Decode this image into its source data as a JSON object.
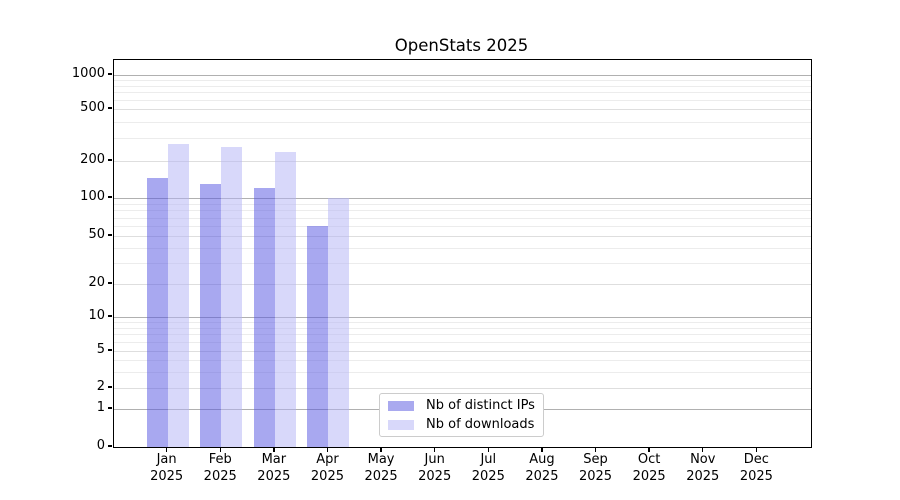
{
  "title": "OpenStats 2025",
  "chart_data": {
    "type": "bar",
    "title": "OpenStats 2025",
    "y_scale": "symlog",
    "ylim": [
      0,
      1320
    ],
    "y_ticks": [
      0,
      1,
      2,
      5,
      10,
      20,
      50,
      100,
      200,
      500,
      1000
    ],
    "grid": "both (horizontal major + minor gridlines)",
    "legend_position": "inside lower-center-left",
    "months": [
      {
        "month": "Jan",
        "year": "2025"
      },
      {
        "month": "Feb",
        "year": "2025"
      },
      {
        "month": "Mar",
        "year": "2025"
      },
      {
        "month": "Apr",
        "year": "2025"
      },
      {
        "month": "May",
        "year": "2025"
      },
      {
        "month": "Jun",
        "year": "2025"
      },
      {
        "month": "Jul",
        "year": "2025"
      },
      {
        "month": "Aug",
        "year": "2025"
      },
      {
        "month": "Sep",
        "year": "2025"
      },
      {
        "month": "Oct",
        "year": "2025"
      },
      {
        "month": "Nov",
        "year": "2025"
      },
      {
        "month": "Dec",
        "year": "2025"
      }
    ],
    "series": [
      {
        "name": "Nb of distinct IPs",
        "base_color": "#5151E1",
        "bar_alpha": 0.5,
        "legend_swatch_color": "#A9A9EF",
        "values": [
          145,
          130,
          120,
          60,
          null,
          null,
          null,
          null,
          null,
          null,
          null,
          null
        ]
      },
      {
        "name": "Nb of downloads",
        "base_color": "#B1B1F5",
        "bar_alpha": 0.5,
        "legend_swatch_color": "#D8D8FA",
        "values": [
          270,
          255,
          235,
          100,
          null,
          null,
          null,
          null,
          null,
          null,
          null,
          null
        ]
      }
    ]
  },
  "legend": {
    "items": [
      {
        "label": "Nb of distinct IPs",
        "color": "#A9A9EF"
      },
      {
        "label": "Nb of downloads",
        "color": "#D8D8FA"
      }
    ]
  },
  "colors": {
    "major_grid": "#B0B0B0",
    "labeled_minor_grid": "#DEDEDE",
    "minor_grid": "#ECECEC",
    "spine": "#000000",
    "legend_border": "#CCCCCC"
  }
}
